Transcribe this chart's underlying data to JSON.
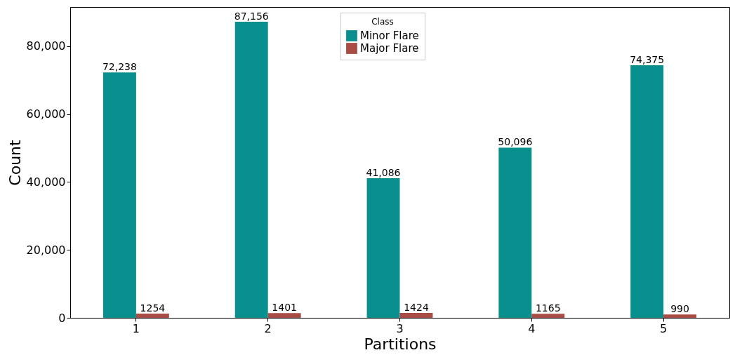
{
  "chart_data": {
    "type": "bar",
    "xlabel": "Partitions",
    "ylabel": "Count",
    "legend_title": "Class",
    "legend": "top",
    "categories": [
      "1",
      "2",
      "3",
      "4",
      "5"
    ],
    "series": [
      {
        "name": "Minor Flare",
        "color": "#0a8f8f",
        "values": [
          72238,
          87156,
          41086,
          50096,
          74375
        ],
        "value_labels": [
          "72,238",
          "87,156",
          "41,086",
          "50,096",
          "74,375"
        ]
      },
      {
        "name": "Major Flare",
        "color": "#a84c44",
        "values": [
          1254,
          1401,
          1424,
          1165,
          990
        ],
        "value_labels": [
          "1254",
          "1401",
          "1424",
          "1165",
          "990"
        ]
      }
    ],
    "ylim": [
      0,
      91500
    ],
    "yticks": [
      {
        "value": 0,
        "label": "0"
      },
      {
        "value": 20000,
        "label": "20,000"
      },
      {
        "value": 40000,
        "label": "40,000"
      },
      {
        "value": 60000,
        "label": "60,000"
      },
      {
        "value": 80000,
        "label": "80,000"
      }
    ],
    "grid": false
  }
}
